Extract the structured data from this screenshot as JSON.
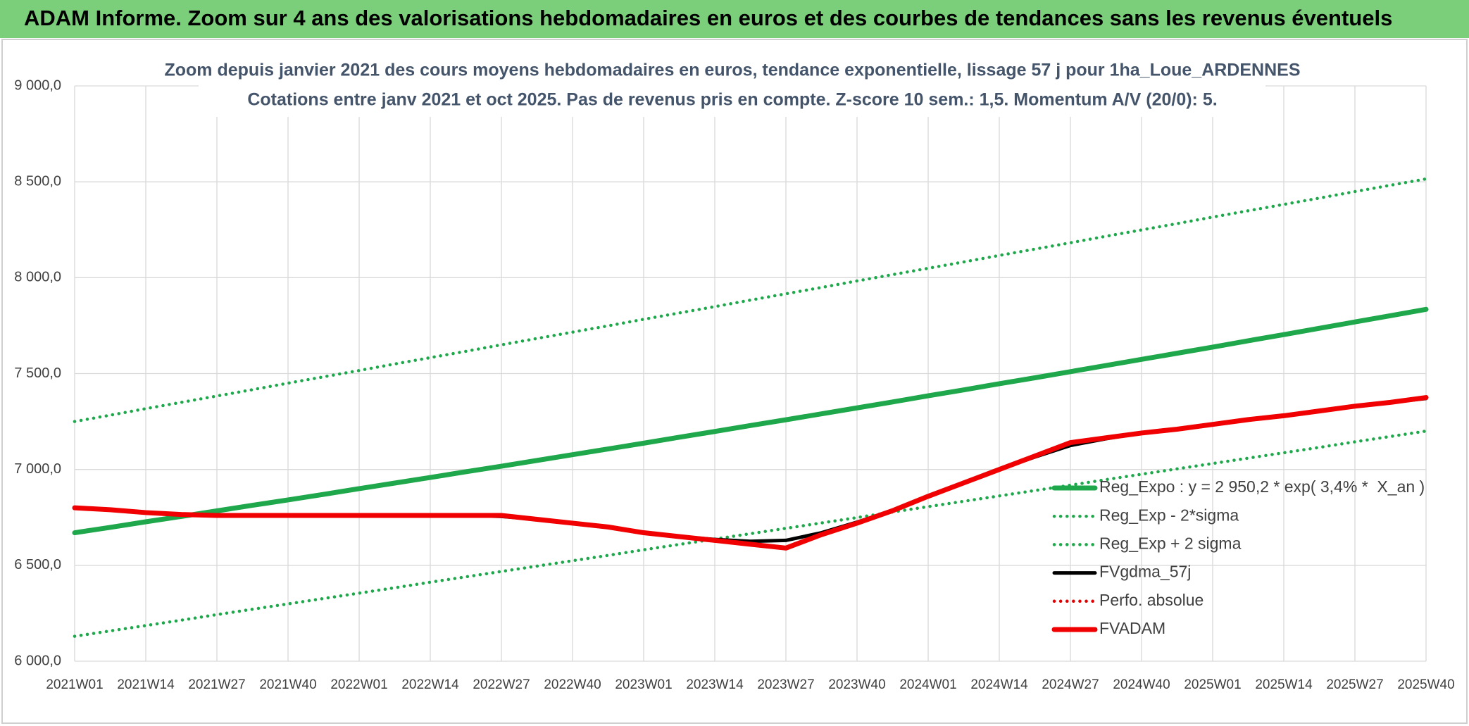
{
  "page_title": "ADAM Informe. Zoom sur 4 ans des valorisations hebdomadaires en euros et des courbes de tendances sans les revenus éventuels",
  "chart_data": {
    "type": "line",
    "title": "Zoom depuis janvier 2021 des cours moyens hebdomadaires en euros, tendance exponentielle, lissage 57 j pour 1ha_Loue_ARDENNES",
    "subtitle": "Cotations entre janv 2021 et oct 2025. Pas de revenus pris en compte. Z-score 10 sem.: 1,5. Momentum A/V (20/0): 5.",
    "categories": [
      "2021W01",
      null,
      "2021W14",
      null,
      "2021W27",
      null,
      "2021W40",
      null,
      "2022W01",
      null,
      "2022W14",
      null,
      "2022W27",
      null,
      "2022W40",
      null,
      "2023W01",
      null,
      "2023W14",
      null,
      "2023W27",
      null,
      "2023W40",
      null,
      "2024W01",
      null,
      "2024W14",
      null,
      "2024W27",
      null,
      "2024W40",
      null,
      "2025W01",
      null,
      "2025W14",
      null,
      "2025W27",
      null,
      "2025W40"
    ],
    "ylim": [
      6000,
      9000
    ],
    "yticks": [
      {
        "value": 6000,
        "label": "6 000,0"
      },
      {
        "value": 6500,
        "label": "6 500,0"
      },
      {
        "value": 7000,
        "label": "7 000,0"
      },
      {
        "value": 7500,
        "label": "7 500,0"
      },
      {
        "value": 8000,
        "label": "8 000,0"
      },
      {
        "value": 8500,
        "label": "8 500,0"
      },
      {
        "value": 9000,
        "label": "9 000,0"
      }
    ],
    "grid": true,
    "legend": "right",
    "series": [
      {
        "name": "Reg_Expo : y = 2 950,2 * exp( 3,4% *  X_an )",
        "color": "#1ea84b",
        "style": "solid",
        "values": [
          6670,
          6698,
          6727,
          6755,
          6784,
          6813,
          6841,
          6870,
          6900,
          6929,
          6958,
          6988,
          7017,
          7047,
          7077,
          7107,
          7137,
          7168,
          7198,
          7229,
          7259,
          7290,
          7321,
          7352,
          7384,
          7415,
          7447,
          7478,
          7510,
          7542,
          7574,
          7606,
          7638,
          7671,
          7703,
          7736,
          7769,
          7802,
          7835
        ]
      },
      {
        "name": "Reg_Exp - 2*sigma",
        "color": "#1ea84b",
        "style": "dotted",
        "values": [
          6130,
          6158,
          6186,
          6214,
          6243,
          6271,
          6299,
          6327,
          6355,
          6383,
          6412,
          6440,
          6468,
          6496,
          6524,
          6552,
          6581,
          6609,
          6637,
          6665,
          6693,
          6721,
          6749,
          6778,
          6806,
          6834,
          6862,
          6890,
          6918,
          6947,
          6975,
          7003,
          7031,
          7059,
          7087,
          7115,
          7144,
          7172,
          7200
        ]
      },
      {
        "name": "Reg_Exp + 2 sigma",
        "color": "#1ea84b",
        "style": "dotted",
        "values": [
          7250,
          7283,
          7317,
          7350,
          7383,
          7416,
          7450,
          7483,
          7516,
          7550,
          7583,
          7616,
          7650,
          7683,
          7716,
          7749,
          7783,
          7816,
          7849,
          7883,
          7916,
          7949,
          7983,
          8016,
          8049,
          8082,
          8116,
          8149,
          8182,
          8216,
          8249,
          8282,
          8316,
          8349,
          8382,
          8415,
          8449,
          8482,
          8515
        ]
      },
      {
        "name": "FVgdma_57j",
        "color": "#000000",
        "style": "solid",
        "values": [
          6800,
          6790,
          6775,
          6765,
          6760,
          6760,
          6760,
          6760,
          6760,
          6760,
          6760,
          6760,
          6755,
          6740,
          6720,
          6700,
          6670,
          6650,
          6635,
          6625,
          6630,
          6670,
          6725,
          6785,
          6860,
          6930,
          7000,
          7065,
          7125,
          7160,
          7190,
          7210,
          7235,
          7260,
          7280,
          7305,
          7330,
          7350,
          7370
        ]
      },
      {
        "name": "Perfo. absolue",
        "color": "#e00000",
        "style": "dotted",
        "values": [
          6800,
          6790,
          6775,
          6765,
          6760,
          6760,
          6760,
          6760,
          6760,
          6760,
          6760,
          6760,
          6760,
          6740,
          6720,
          6700,
          6670,
          6650,
          6630,
          6610,
          6590,
          6660,
          6720,
          6785,
          6860,
          6930,
          7000,
          7070,
          7140,
          7165,
          7190,
          7210,
          7235,
          7260,
          7280,
          7305,
          7330,
          7350,
          7375
        ]
      },
      {
        "name": "FVADAM",
        "color": "#f00000",
        "style": "solid",
        "values": [
          6800,
          6790,
          6775,
          6765,
          6760,
          6760,
          6760,
          6760,
          6760,
          6760,
          6760,
          6760,
          6760,
          6740,
          6720,
          6700,
          6670,
          6650,
          6630,
          6610,
          6590,
          6660,
          6720,
          6785,
          6860,
          6930,
          7000,
          7070,
          7140,
          7165,
          7190,
          7210,
          7235,
          7260,
          7280,
          7305,
          7330,
          7350,
          7375
        ]
      }
    ]
  }
}
